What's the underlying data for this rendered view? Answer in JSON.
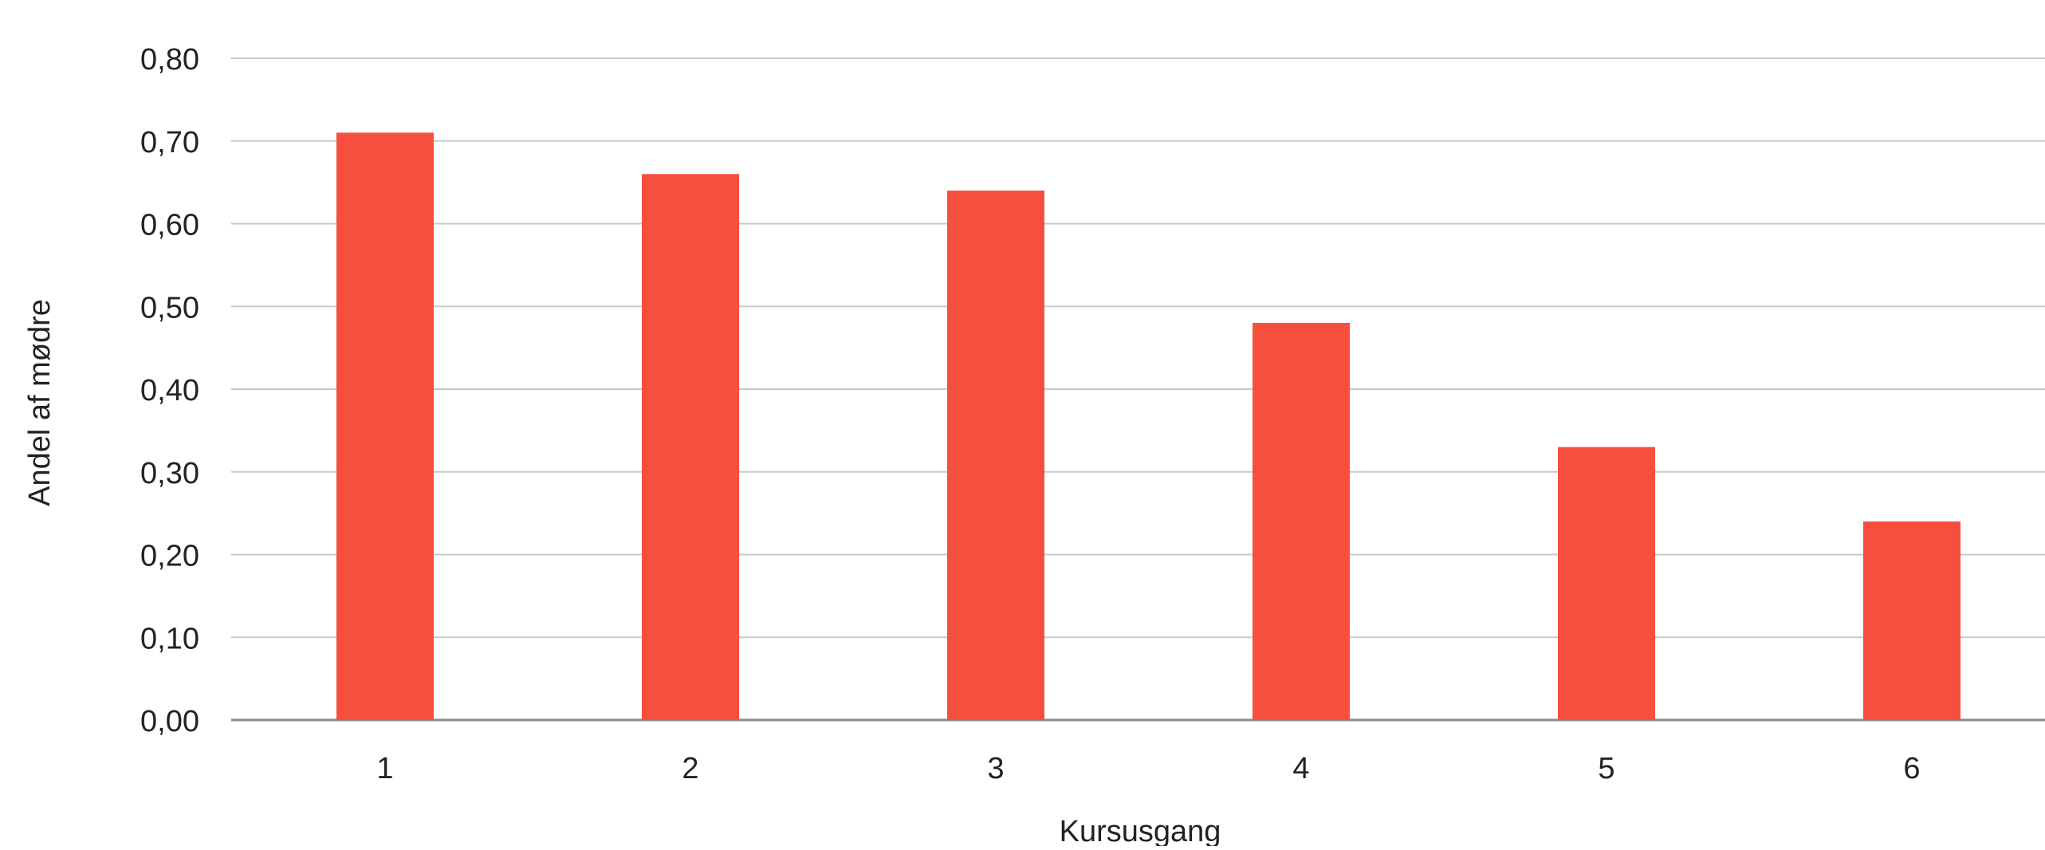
{
  "chart_data": {
    "type": "bar",
    "title": "",
    "xlabel": "Kursusgang",
    "ylabel": "Andel af mødre",
    "categories": [
      "1",
      "2",
      "3",
      "4",
      "5",
      "6"
    ],
    "values": [
      0.71,
      0.66,
      0.64,
      0.48,
      0.33,
      0.24
    ],
    "ylim": [
      0,
      0.8
    ],
    "yticks": [
      "0,00",
      "0,10",
      "0,20",
      "0,30",
      "0,40",
      "0,50",
      "0,60",
      "0,70",
      "0,80"
    ],
    "grid": true,
    "legend": "none",
    "colors": {
      "bar": "#F74F3E",
      "grid": "#c8c8c8",
      "text": "#222222"
    }
  }
}
